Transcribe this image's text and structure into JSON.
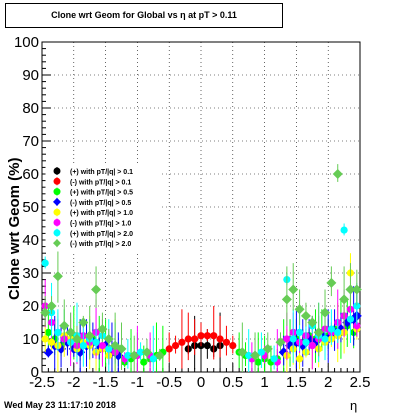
{
  "title": "Clone wrt Geom for Global vs   η at pT > 0.11",
  "footer": "Wed May 23 11:17:10 2018",
  "chart_data": {
    "type": "scatter",
    "title": "Clone wrt Geom for Global vs   η at pT > 0.11",
    "xlabel": "η",
    "ylabel": "Clone wrt Geom (%)",
    "xlim": [
      -2.5,
      2.5
    ],
    "ylim": [
      0,
      100
    ],
    "xticks": [
      "-2.5",
      "-2",
      "-1.5",
      "-1",
      "-0.5",
      "0",
      "0.5",
      "1",
      "1.5",
      "2",
      "2.5"
    ],
    "yticks": [
      "0",
      "10",
      "20",
      "30",
      "40",
      "50",
      "60",
      "70",
      "80",
      "90",
      "100"
    ],
    "grid": true,
    "legend_position": "left-middle",
    "series": [
      {
        "name": "(+) with pT/|q| > 0.1",
        "color": "#000000",
        "marker": "circle",
        "x": [
          -0.2,
          -0.1,
          0,
          0.1,
          0.2,
          0.3
        ],
        "y": [
          7,
          8,
          8,
          8,
          7,
          8
        ]
      },
      {
        "name": "(-) with pT/|q| > 0.1",
        "color": "#ff0000",
        "marker": "circle",
        "x": [
          -0.5,
          -0.4,
          -0.3,
          -0.2,
          -0.1,
          0,
          0.1,
          0.2,
          0.3,
          0.4,
          0.5
        ],
        "y": [
          7,
          8,
          9,
          10,
          10,
          11,
          11,
          11,
          10,
          9,
          8
        ]
      },
      {
        "name": "(+) with pT/|q| > 0.5",
        "color": "#00ff00",
        "marker": "circle",
        "x": [
          -2.4,
          -2.3,
          -2.2,
          -2.1,
          -2.0,
          -1.9,
          -1.8,
          -1.7,
          -1.6,
          -1.5,
          -1.4,
          -1.3,
          -1.2,
          -1.1,
          -1.0,
          -0.9,
          -0.8,
          -0.7,
          -0.6,
          0.6,
          0.7,
          0.8,
          0.9,
          1.0,
          1.1,
          1.2,
          1.3,
          1.4,
          1.5,
          1.6,
          1.7,
          1.8,
          1.9,
          2.0,
          2.1,
          2.2,
          2.3,
          2.4
        ],
        "y": [
          12,
          10,
          8,
          9,
          11,
          9,
          8,
          10,
          7,
          8,
          6,
          5,
          3,
          4,
          5,
          3,
          4,
          5,
          6,
          6,
          5,
          4,
          3,
          4,
          3,
          4,
          6,
          8,
          10,
          9,
          11,
          10,
          12,
          11,
          13,
          12,
          14,
          12
        ]
      },
      {
        "name": "(-) with pT/|q| > 0.5",
        "color": "#0000ff",
        "marker": "diamond",
        "x": [
          -2.4,
          -2.3,
          -2.2,
          -2.1,
          -2.0,
          -1.9,
          -1.8,
          -1.7,
          -1.6,
          -1.5,
          -1.4,
          -1.3,
          1.3,
          1.4,
          1.5,
          1.6,
          1.7,
          1.8,
          1.9,
          2.0,
          2.1,
          2.2,
          2.3,
          2.4,
          2.45
        ],
        "y": [
          6,
          8,
          7,
          9,
          7,
          6,
          8,
          9,
          7,
          8,
          6,
          5,
          6,
          8,
          9,
          8,
          10,
          9,
          11,
          10,
          12,
          13,
          15,
          16,
          17
        ]
      },
      {
        "name": "(+) with pT/|q| > 1.0",
        "color": "#ffff00",
        "marker": "circle",
        "x": [
          -2.45,
          -2.35,
          -2.25,
          -2.15,
          -2.05,
          -1.95,
          -1.85,
          -1.75,
          -1.65,
          -1.55,
          -1.45,
          -1.35,
          1.35,
          1.45,
          1.55,
          1.65,
          1.75,
          1.85,
          1.95,
          2.05,
          2.15,
          2.25,
          2.35,
          2.45
        ],
        "y": [
          10,
          9,
          8,
          11,
          10,
          7,
          9,
          8,
          6,
          7,
          5,
          6,
          5,
          7,
          4,
          6,
          8,
          7,
          9,
          10,
          11,
          12,
          30,
          13
        ]
      },
      {
        "name": "(-) with pT/|q| > 1.0",
        "color": "#ff00ff",
        "marker": "circle",
        "x": [
          -2.45,
          -2.35,
          -2.25,
          -2.15,
          -2.05,
          -1.95,
          -1.85,
          -1.75,
          -1.65,
          -1.55,
          -1.45,
          -1.35,
          -1.2,
          -1.0,
          -0.8,
          0.8,
          1.0,
          1.2,
          1.35,
          1.45,
          1.55,
          1.65,
          1.75,
          1.85,
          1.95,
          2.05,
          2.15,
          2.25,
          2.35,
          2.45
        ],
        "y": [
          20,
          15,
          12,
          10,
          9,
          8,
          11,
          9,
          12,
          8,
          7,
          6,
          4,
          5,
          5,
          4,
          5,
          3,
          10,
          12,
          9,
          11,
          8,
          10,
          13,
          12,
          15,
          17,
          19,
          14
        ]
      },
      {
        "name": "(+) with pT/|q| > 2.0",
        "color": "#00ffff",
        "marker": "circle",
        "x": [
          -2.45,
          -2.35,
          -2.25,
          -2.15,
          -2.05,
          -1.95,
          -1.85,
          -1.75,
          -1.65,
          -1.55,
          -1.45,
          -1.35,
          -1.15,
          -0.95,
          -0.75,
          0.75,
          0.95,
          1.15,
          1.35,
          1.45,
          1.55,
          1.65,
          1.75,
          1.85,
          1.95,
          2.05,
          2.15,
          2.25,
          2.35,
          2.45
        ],
        "y": [
          33,
          18,
          12,
          14,
          9,
          11,
          8,
          10,
          9,
          11,
          7,
          8,
          5,
          6,
          4,
          5,
          6,
          4,
          28,
          10,
          12,
          9,
          14,
          11,
          10,
          13,
          12,
          43,
          16,
          20
        ]
      },
      {
        "name": "(-) with pT/|q| > 2.0",
        "color": "#66cc55",
        "marker": "diamond",
        "x": [
          -2.45,
          -2.35,
          -2.25,
          -2.15,
          -2.05,
          -1.95,
          -1.85,
          -1.75,
          -1.65,
          -1.55,
          -1.45,
          -1.35,
          -1.25,
          -1.05,
          -0.85,
          -0.65,
          0.65,
          0.85,
          1.05,
          1.25,
          1.35,
          1.45,
          1.55,
          1.65,
          1.75,
          1.85,
          1.95,
          2.05,
          2.15,
          2.25,
          2.35,
          2.45
        ],
        "y": [
          18,
          20,
          29,
          14,
          12,
          10,
          15,
          11,
          25,
          13,
          10,
          8,
          7,
          5,
          6,
          5,
          6,
          5,
          7,
          9,
          22,
          25,
          19,
          17,
          15,
          12,
          18,
          27,
          60,
          22,
          25,
          25
        ]
      }
    ]
  }
}
